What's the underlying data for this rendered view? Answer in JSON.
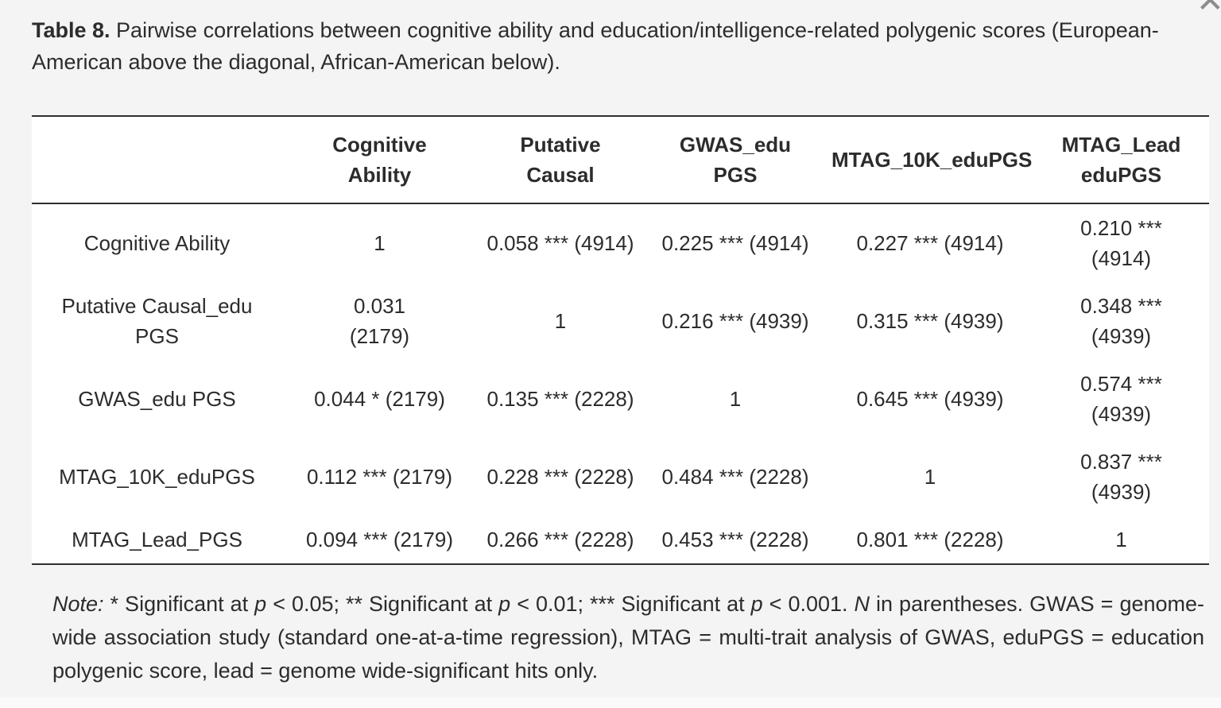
{
  "page": {
    "close_icon": "✕"
  },
  "title": {
    "label": "Table 8.",
    "text": " Pairwise correlations between cognitive ability and education/intelligence-related polygenic scores (European-\nAmerican above the diagonal, African-American below)."
  },
  "table": {
    "headers": [
      "",
      "Cognitive\nAbility",
      "Putative\nCausal",
      "GWAS_edu\nPGS",
      "MTAG_10K_eduPGS",
      "MTAG_Lead\neduPGS"
    ],
    "rows": [
      {
        "label": "Cognitive Ability",
        "cells": [
          "1",
          "0.058 *** (4914)",
          "0.225 *** (4914)",
          "0.227 *** (4914)",
          "0.210 ***\n(4914)"
        ]
      },
      {
        "label": "Putative Causal_edu\nPGS",
        "cells": [
          "0.031\n(2179)",
          "1",
          "0.216 *** (4939)",
          "0.315 *** (4939)",
          "0.348 ***\n(4939)"
        ]
      },
      {
        "label": "GWAS_edu PGS",
        "cells": [
          "0.044 * (2179)",
          "0.135 *** (2228)",
          "1",
          "0.645 *** (4939)",
          "0.574 ***\n(4939)"
        ]
      },
      {
        "label": "MTAG_10K_eduPGS",
        "cells": [
          "0.112 *** (2179)",
          "0.228 *** (2228)",
          "0.484 *** (2228)",
          "1",
          "0.837 ***\n(4939)"
        ]
      },
      {
        "label": "MTAG_Lead_PGS",
        "cells": [
          "0.094 *** (2179)",
          "0.266 *** (2228)",
          "0.453 *** (2228)",
          "0.801 *** (2228)",
          "1"
        ]
      }
    ]
  },
  "note": {
    "segments": [
      {
        "t": "Note:",
        "i": true
      },
      {
        "t": " * Significant at ",
        "i": false
      },
      {
        "t": "p",
        "i": true
      },
      {
        "t": " < 0.05; ** Significant at ",
        "i": false
      },
      {
        "t": "p",
        "i": true
      },
      {
        "t": " < 0.01; *** Significant at ",
        "i": false
      },
      {
        "t": "p",
        "i": true
      },
      {
        "t": " < 0.001. ",
        "i": false
      },
      {
        "t": "N",
        "i": true
      },
      {
        "t": " in parentheses. GWAS = genome-wide association study (standard one-at-a-time regression), MTAG = multi-trait analysis of GWAS, eduPGS = education polygenic score, lead = genome wide-significant hits only.",
        "i": false
      }
    ]
  }
}
